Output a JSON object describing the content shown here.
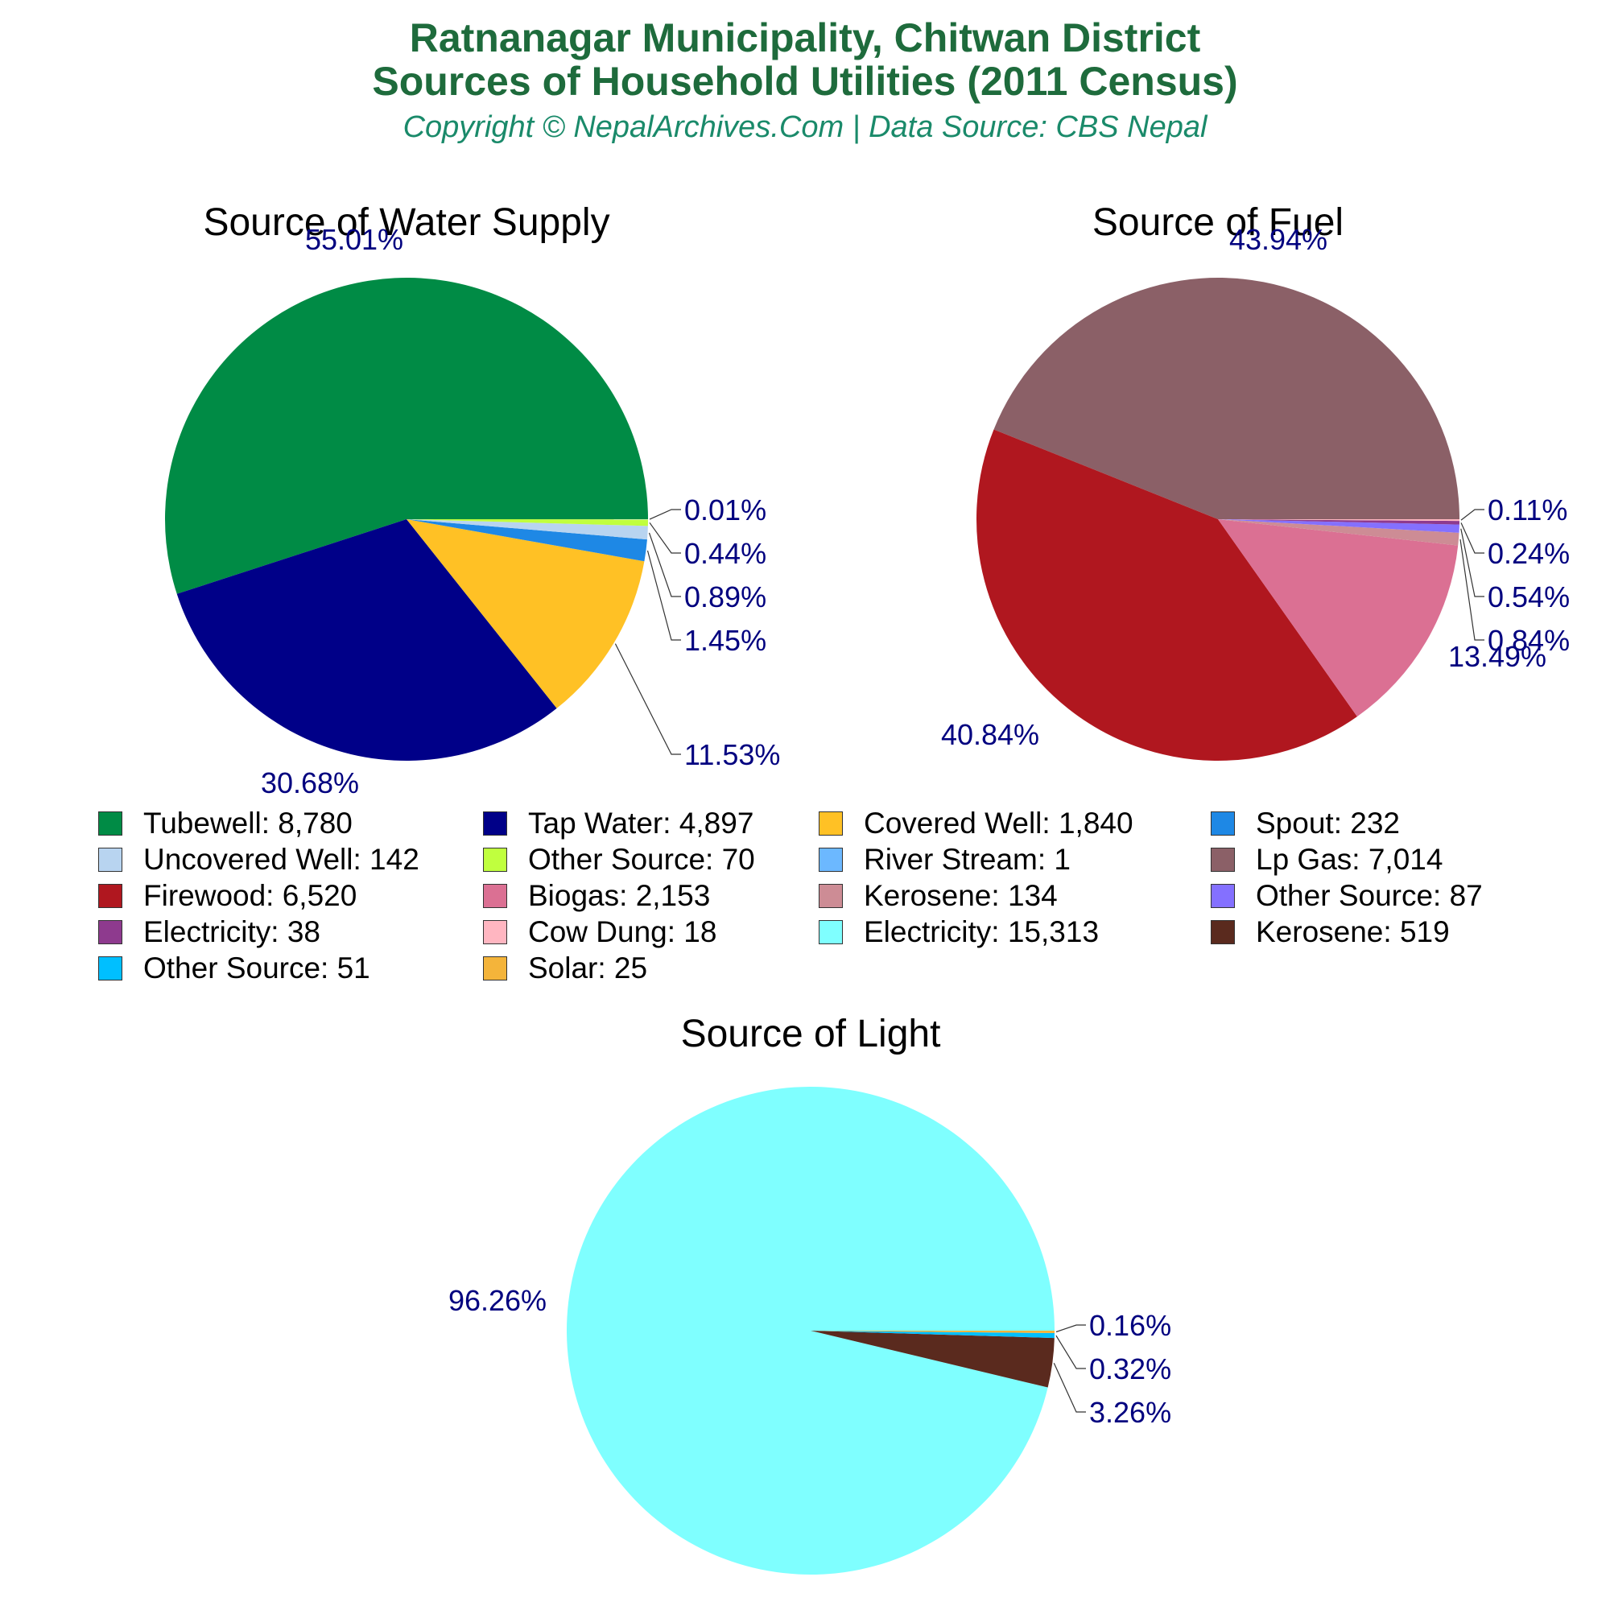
{
  "title_line1": "Ratnanagar Municipality, Chitwan District",
  "title_line2": "Sources of Household Utilities (2011 Census)",
  "subtitle": "Copyright © NepalArchives.Com | Data Source: CBS Nepal",
  "label_color": "#00007f",
  "chart_data": [
    {
      "type": "pie",
      "title": "Source of Water Supply",
      "series": [
        {
          "name": "Tubewell",
          "value": 8780,
          "value_label": "8,780",
          "color": "#008b45",
          "pct_label": "55.01%"
        },
        {
          "name": "Tap Water",
          "value": 4897,
          "value_label": "4,897",
          "color": "#000088",
          "pct_label": "30.68%"
        },
        {
          "name": "Covered Well",
          "value": 1840,
          "value_label": "1,840",
          "color": "#ffc125",
          "pct_label": "11.53%"
        },
        {
          "name": "Spout",
          "value": 232,
          "value_label": "232",
          "color": "#1e88e5",
          "pct_label": "1.45%"
        },
        {
          "name": "Uncovered Well",
          "value": 142,
          "value_label": "142",
          "color": "#b8d4f0",
          "pct_label": "0.89%"
        },
        {
          "name": "Other Source",
          "value": 70,
          "value_label": "70",
          "color": "#c0ff3e",
          "pct_label": "0.44%"
        },
        {
          "name": "River Stream",
          "value": 1,
          "value_label": "1",
          "color": "#6cb8ff",
          "pct_label": "0.01%"
        }
      ]
    },
    {
      "type": "pie",
      "title": "Source of Fuel",
      "series": [
        {
          "name": "Lp Gas",
          "value": 7014,
          "value_label": "7,014",
          "color": "#8b6067",
          "pct_label": "43.94%"
        },
        {
          "name": "Firewood",
          "value": 6520,
          "value_label": "6,520",
          "color": "#b0171f",
          "pct_label": "40.84%"
        },
        {
          "name": "Biogas",
          "value": 2153,
          "value_label": "2,153",
          "color": "#db7093",
          "pct_label": "13.49%"
        },
        {
          "name": "Kerosene",
          "value": 134,
          "value_label": "134",
          "color": "#cd8c95",
          "pct_label": "0.84%"
        },
        {
          "name": "Other Source",
          "value": 87,
          "value_label": "87",
          "color": "#8470ff",
          "pct_label": "0.54%"
        },
        {
          "name": "Electricity",
          "value": 38,
          "value_label": "38",
          "color": "#8e3a8e",
          "pct_label": "0.24%"
        },
        {
          "name": "Cow Dung",
          "value": 18,
          "value_label": "18",
          "color": "#ffb6c1",
          "pct_label": "0.11%"
        }
      ]
    },
    {
      "type": "pie",
      "title": "Source of Light",
      "series": [
        {
          "name": "Electricity",
          "value": 15313,
          "value_label": "15,313",
          "color": "#7fffff",
          "pct_label": "96.26%"
        },
        {
          "name": "Kerosene",
          "value": 519,
          "value_label": "519",
          "color": "#5a2a1e",
          "pct_label": "3.26%"
        },
        {
          "name": "Other Source",
          "value": 51,
          "value_label": "51",
          "color": "#00bfff",
          "pct_label": "0.32%"
        },
        {
          "name": "Solar",
          "value": 25,
          "value_label": "25",
          "color": "#f4b43a",
          "pct_label": "0.16%"
        }
      ]
    }
  ]
}
